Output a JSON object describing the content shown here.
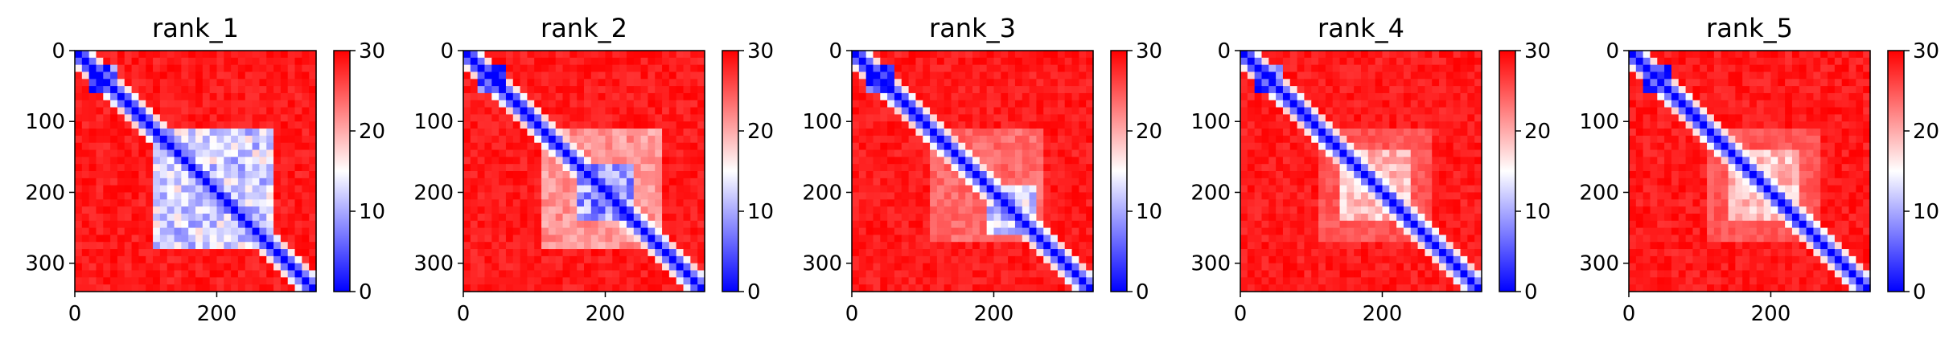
{
  "chart_data": [
    {
      "type": "heatmap",
      "title": "rank_1",
      "x_ticks": [
        "0",
        "200"
      ],
      "y_ticks": [
        "0",
        "100",
        "200",
        "300"
      ],
      "x_tick_values": [
        0,
        200
      ],
      "y_tick_values": [
        0,
        100,
        200,
        300
      ],
      "xlim": [
        0,
        340
      ],
      "ylim": [
        340,
        0
      ],
      "colorbar": {
        "ticks": [
          "0",
          "10",
          "20",
          "30"
        ],
        "values": [
          0,
          10,
          20,
          30
        ],
        "vmin": 0,
        "vmax": 30,
        "colormap": "bwr"
      },
      "blue_regions": [
        {
          "x": [
            20,
            60
          ],
          "y": [
            20,
            60
          ]
        },
        {
          "x": [
            115,
            280
          ],
          "y": [
            115,
            280
          ],
          "strength": 0.7
        }
      ]
    },
    {
      "type": "heatmap",
      "title": "rank_2",
      "x_ticks": [
        "0",
        "200"
      ],
      "y_ticks": [
        "0",
        "100",
        "200",
        "300"
      ],
      "x_tick_values": [
        0,
        200
      ],
      "y_tick_values": [
        0,
        100,
        200,
        300
      ],
      "xlim": [
        0,
        340
      ],
      "ylim": [
        340,
        0
      ],
      "colorbar": {
        "ticks": [
          "0",
          "10",
          "20",
          "30"
        ],
        "values": [
          0,
          10,
          20,
          30
        ],
        "vmin": 0,
        "vmax": 30,
        "colormap": "bwr"
      },
      "blue_regions": [
        {
          "x": [
            20,
            60
          ],
          "y": [
            20,
            60
          ]
        },
        {
          "x": [
            160,
            240
          ],
          "y": [
            160,
            240
          ],
          "strength": 0.85
        },
        {
          "x": [
            115,
            280
          ],
          "y": [
            115,
            280
          ],
          "strength": 0.35
        }
      ]
    },
    {
      "type": "heatmap",
      "title": "rank_3",
      "x_ticks": [
        "0",
        "200"
      ],
      "y_ticks": [
        "0",
        "100",
        "200",
        "300"
      ],
      "x_tick_values": [
        0,
        200
      ],
      "y_tick_values": [
        0,
        100,
        200,
        300
      ],
      "xlim": [
        0,
        340
      ],
      "ylim": [
        340,
        0
      ],
      "colorbar": {
        "ticks": [
          "0",
          "10",
          "20",
          "30"
        ],
        "values": [
          0,
          10,
          20,
          30
        ],
        "vmin": 0,
        "vmax": 30,
        "colormap": "bwr"
      },
      "blue_regions": [
        {
          "x": [
            20,
            60
          ],
          "y": [
            20,
            60
          ]
        },
        {
          "x": [
            190,
            260
          ],
          "y": [
            190,
            260
          ],
          "strength": 0.7
        },
        {
          "x": [
            115,
            270
          ],
          "y": [
            115,
            270
          ],
          "strength": 0.25
        }
      ]
    },
    {
      "type": "heatmap",
      "title": "rank_4",
      "x_ticks": [
        "0",
        "200"
      ],
      "y_ticks": [
        "0",
        "100",
        "200",
        "300"
      ],
      "x_tick_values": [
        0,
        200
      ],
      "y_tick_values": [
        0,
        100,
        200,
        300
      ],
      "xlim": [
        0,
        340
      ],
      "ylim": [
        340,
        0
      ],
      "colorbar": {
        "ticks": [
          "0",
          "10",
          "20",
          "30"
        ],
        "values": [
          0,
          10,
          20,
          30
        ],
        "vmin": 0,
        "vmax": 30,
        "colormap": "bwr"
      },
      "blue_regions": [
        {
          "x": [
            20,
            60
          ],
          "y": [
            20,
            60
          ]
        },
        {
          "x": [
            140,
            240
          ],
          "y": [
            140,
            240
          ],
          "strength": 0.45
        },
        {
          "x": [
            110,
            270
          ],
          "y": [
            110,
            270
          ],
          "strength": 0.2
        }
      ]
    },
    {
      "type": "heatmap",
      "title": "rank_5",
      "x_ticks": [
        "0",
        "200"
      ],
      "y_ticks": [
        "0",
        "100",
        "200",
        "300"
      ],
      "x_tick_values": [
        0,
        200
      ],
      "y_tick_values": [
        0,
        100,
        200,
        300
      ],
      "xlim": [
        0,
        340
      ],
      "ylim": [
        340,
        0
      ],
      "colorbar": {
        "ticks": [
          "0",
          "10",
          "20",
          "30"
        ],
        "values": [
          0,
          10,
          20,
          30
        ],
        "vmin": 0,
        "vmax": 30,
        "colormap": "bwr"
      },
      "blue_regions": [
        {
          "x": [
            20,
            60
          ],
          "y": [
            20,
            60
          ]
        },
        {
          "x": [
            140,
            240
          ],
          "y": [
            140,
            240
          ],
          "strength": 0.45
        },
        {
          "x": [
            110,
            270
          ],
          "y": [
            110,
            270
          ],
          "strength": 0.2
        }
      ]
    }
  ]
}
